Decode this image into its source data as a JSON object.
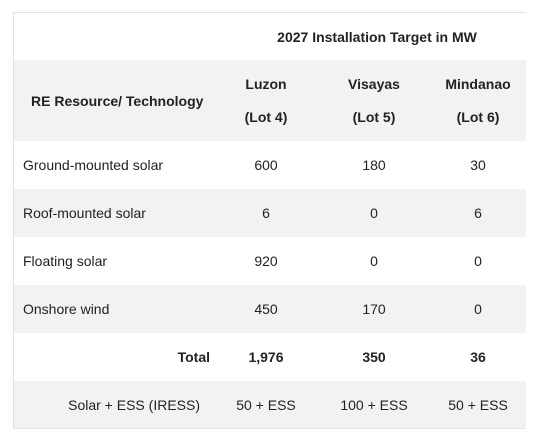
{
  "table": {
    "title": "2027 Installation Target in MW",
    "header": {
      "technology_label": "RE Resource/ Technology",
      "regions": [
        {
          "name": "Luzon",
          "lot": "(Lot 4)"
        },
        {
          "name": "Visayas",
          "lot": "(Lot 5)"
        },
        {
          "name": "Mindanao",
          "lot": "(Lot 6)"
        }
      ]
    },
    "rows": [
      {
        "technology": "Ground-mounted solar",
        "luzon": "600",
        "visayas": "180",
        "mindanao": "30"
      },
      {
        "technology": "Roof-mounted solar",
        "luzon": "6",
        "visayas": "0",
        "mindanao": "6"
      },
      {
        "technology": "Floating solar",
        "luzon": "920",
        "visayas": "0",
        "mindanao": "0"
      },
      {
        "technology": "Onshore wind",
        "luzon": "450",
        "visayas": "170",
        "mindanao": "0"
      }
    ],
    "total": {
      "label": "Total",
      "luzon": "1,976",
      "visayas": "350",
      "mindanao": "36"
    },
    "ess": {
      "label": "Solar + ESS (IRESS)",
      "luzon": "50 + ESS",
      "visayas": "100 + ESS",
      "mindanao": "50 + ESS"
    }
  }
}
